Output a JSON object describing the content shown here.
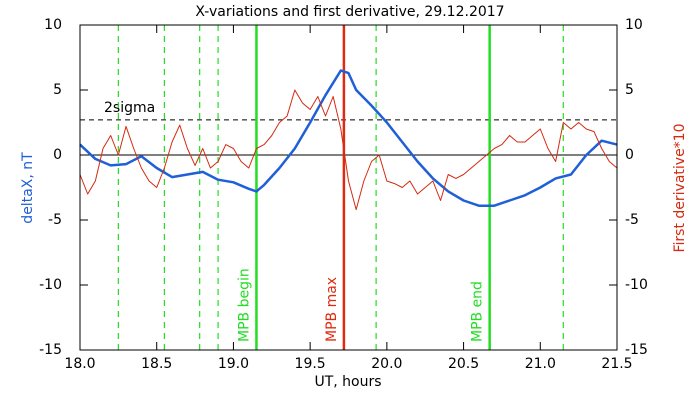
{
  "chart_data": {
    "type": "line",
    "title": "X-variations and first derivative, 29.12.2017",
    "xlabel": "UT, hours",
    "ylabel": "deltaX, nT",
    "y2label": "First derivative*10",
    "xlim": [
      18.0,
      21.5
    ],
    "xticks": [
      {
        "value": 18,
        "label": "18.0"
      },
      {
        "value": 18.5,
        "label": "18.5"
      },
      {
        "value": 19,
        "label": "19.0"
      },
      {
        "value": 19.5,
        "label": "19.5"
      },
      {
        "value": 20,
        "label": "20.0"
      },
      {
        "value": 20.5,
        "label": "20.5"
      },
      {
        "value": 21,
        "label": "21.0"
      },
      {
        "value": 21.5,
        "label": "21.5"
      }
    ],
    "ylim": [
      -15,
      10
    ],
    "yticks": [
      10,
      5,
      0,
      -5,
      -10,
      -15
    ],
    "y2lim": [
      -15,
      10
    ],
    "y2ticks": [
      10,
      5,
      0,
      -5,
      -10,
      -15
    ],
    "series": [
      {
        "color": "#1f5fd8",
        "axis": "y",
        "x": [
          18.0,
          18.1,
          18.2,
          18.3,
          18.4,
          18.5,
          18.6,
          18.7,
          18.8,
          18.9,
          19.0,
          19.1,
          19.15,
          19.2,
          19.3,
          19.4,
          19.5,
          19.6,
          19.7,
          19.75,
          19.8,
          19.9,
          20.0,
          20.1,
          20.2,
          20.3,
          20.4,
          20.5,
          20.6,
          20.7,
          20.8,
          20.9,
          21.0,
          21.1,
          21.2,
          21.3,
          21.4,
          21.5
        ],
        "values": [
          0.8,
          -0.3,
          -0.8,
          -0.7,
          -0.1,
          -1.0,
          -1.7,
          -1.5,
          -1.3,
          -1.9,
          -2.1,
          -2.6,
          -2.8,
          -2.3,
          -1.0,
          0.5,
          2.5,
          4.6,
          6.5,
          6.3,
          5.0,
          3.8,
          2.5,
          1.0,
          -0.5,
          -1.8,
          -2.8,
          -3.5,
          -3.9,
          -3.9,
          -3.5,
          -3.1,
          -2.5,
          -1.8,
          -1.5,
          0.0,
          1.1,
          0.8
        ]
      },
      {
        "color": "#d42a10",
        "axis": "y2",
        "x": [
          18.0,
          18.05,
          18.1,
          18.15,
          18.2,
          18.25,
          18.3,
          18.35,
          18.4,
          18.45,
          18.5,
          18.55,
          18.6,
          18.65,
          18.7,
          18.75,
          18.8,
          18.85,
          18.9,
          18.95,
          19.0,
          19.05,
          19.1,
          19.15,
          19.2,
          19.25,
          19.3,
          19.35,
          19.4,
          19.45,
          19.5,
          19.55,
          19.6,
          19.65,
          19.7,
          19.75,
          19.8,
          19.85,
          19.9,
          19.95,
          20.0,
          20.05,
          20.1,
          20.15,
          20.2,
          20.25,
          20.3,
          20.35,
          20.4,
          20.45,
          20.5,
          20.55,
          20.6,
          20.65,
          20.7,
          20.75,
          20.8,
          20.85,
          20.9,
          20.95,
          21.0,
          21.05,
          21.1,
          21.15,
          21.2,
          21.25,
          21.3,
          21.35,
          21.4,
          21.45,
          21.5
        ],
        "values": [
          -1.5,
          -3.0,
          -2.0,
          0.5,
          1.5,
          0.0,
          2.2,
          0.5,
          -1.0,
          -2.0,
          -2.5,
          -1.0,
          1.0,
          2.3,
          0.5,
          -0.8,
          0.5,
          -1.0,
          -0.5,
          0.8,
          0.5,
          -0.5,
          -1.0,
          0.5,
          0.8,
          1.5,
          2.5,
          3.0,
          5.0,
          4.0,
          3.5,
          4.5,
          3.0,
          4.5,
          2.0,
          -2.0,
          -4.2,
          -2.0,
          -0.5,
          0.0,
          -2.0,
          -2.2,
          -2.5,
          -2.0,
          -3.0,
          -2.5,
          -2.0,
          -3.5,
          -1.5,
          -1.8,
          -1.5,
          -1.0,
          -0.5,
          0.0,
          0.5,
          0.8,
          1.5,
          1.0,
          1.0,
          1.5,
          2.0,
          0.5,
          -0.5,
          2.5,
          2.0,
          2.5,
          2.0,
          1.8,
          0.5,
          -0.5,
          -1.0
        ]
      }
    ],
    "vlines": [
      {
        "x": 18.25,
        "color": "#22dd22",
        "style": "dashed"
      },
      {
        "x": 18.55,
        "color": "#22dd22",
        "style": "dashed"
      },
      {
        "x": 18.78,
        "color": "#22dd22",
        "style": "dashed"
      },
      {
        "x": 18.9,
        "color": "#22dd22",
        "style": "dashed"
      },
      {
        "x": 19.15,
        "color": "#22dd22",
        "style": "solid",
        "label": "MPB begin"
      },
      {
        "x": 19.72,
        "color": "#e02a10",
        "style": "solid",
        "label": "MPB max"
      },
      {
        "x": 19.93,
        "color": "#22dd22",
        "style": "dashed"
      },
      {
        "x": 20.67,
        "color": "#22dd22",
        "style": "solid",
        "label": "MPB end"
      },
      {
        "x": 21.15,
        "color": "#22dd22",
        "style": "dashed"
      }
    ],
    "threshold": {
      "y": 2.7,
      "label": "2sigma"
    }
  }
}
